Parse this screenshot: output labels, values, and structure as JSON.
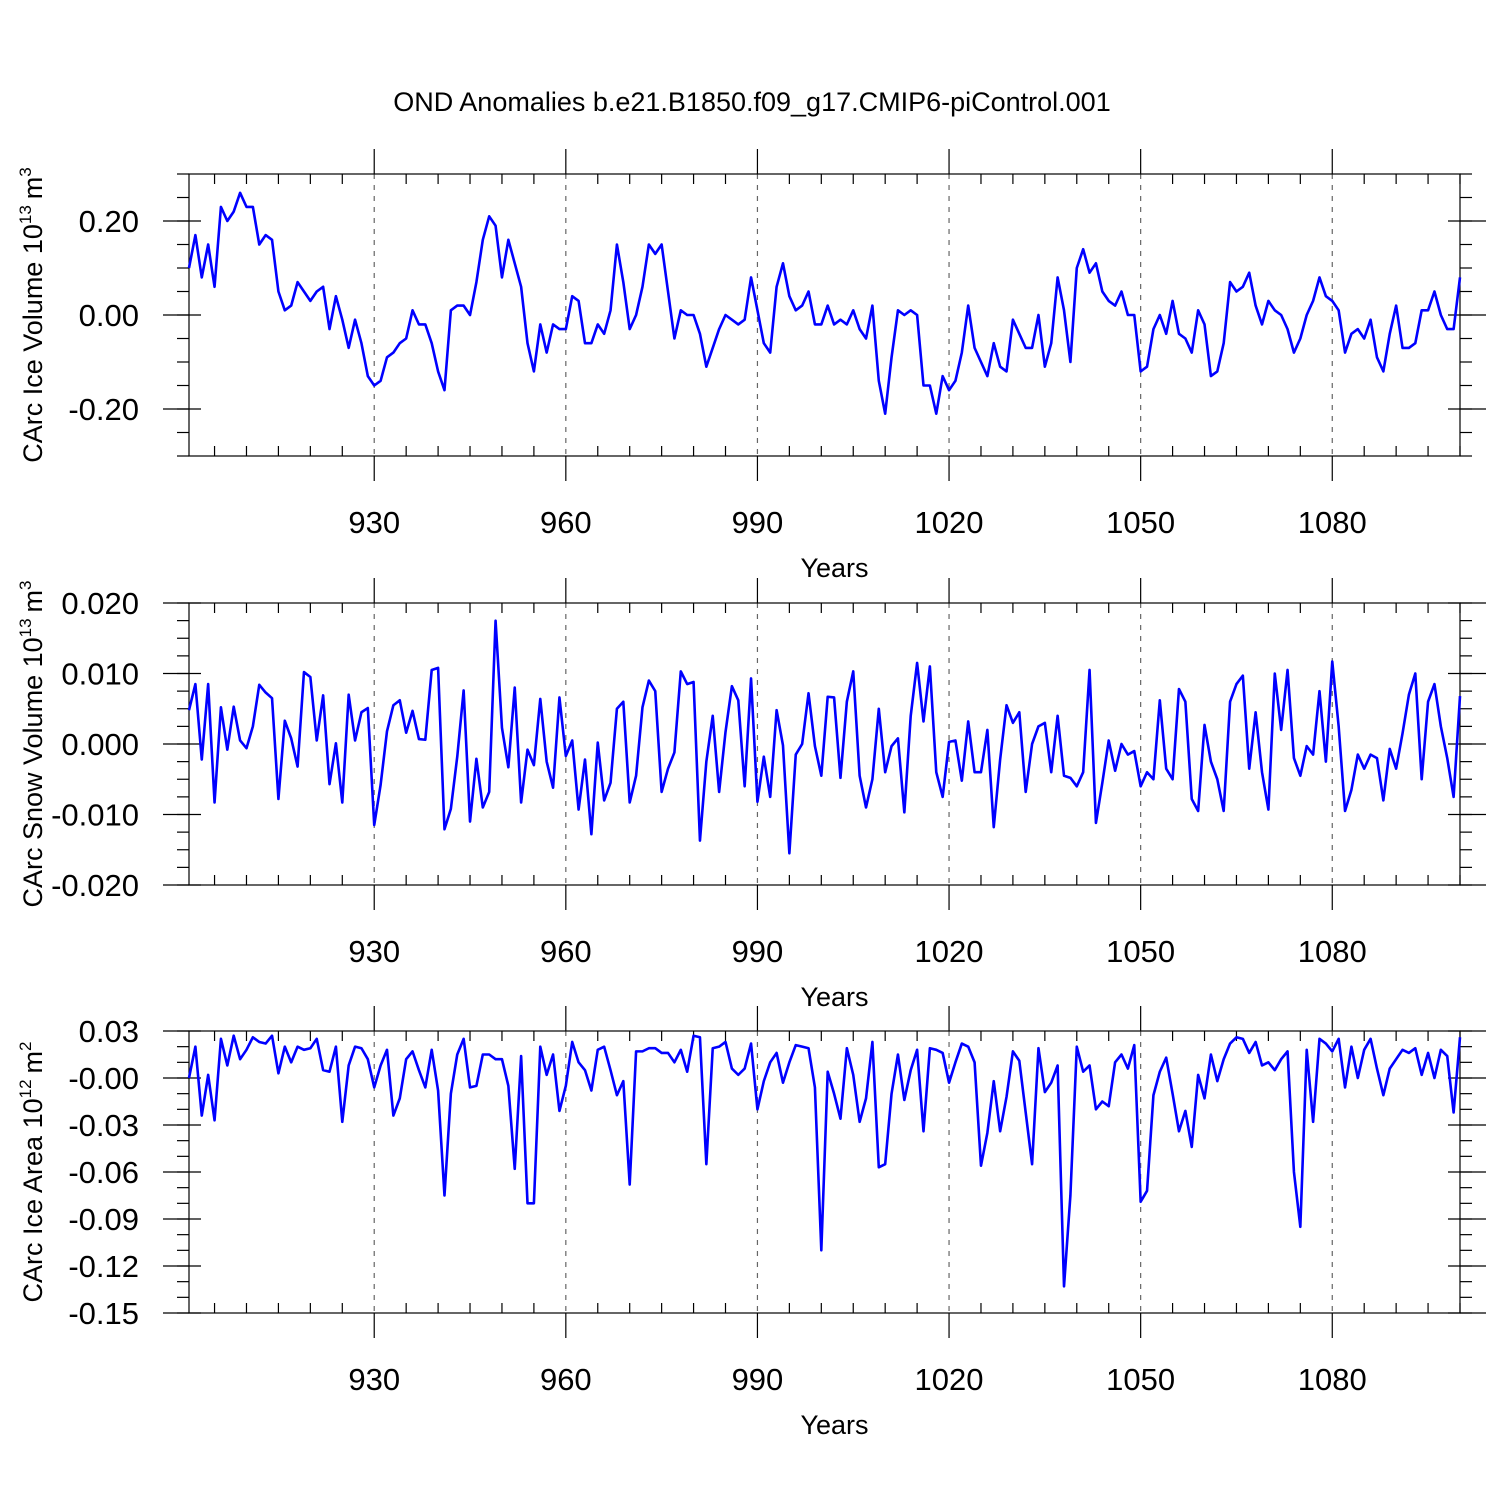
{
  "figure": {
    "title": "OND Anomalies b.e21.B1850.f09_g17.CMIP6-piControl.001"
  },
  "chart_data": [
    {
      "type": "line",
      "ylabel": "CArc Ice Volume 10",
      "ylabel_exp": "13",
      "ylabel_unit": "m",
      "ylabel_unit_exp": "3",
      "xlabel": "Years",
      "xlim": [
        901,
        1100
      ],
      "ylim": [
        -0.3,
        0.3
      ],
      "xticks": [
        930,
        960,
        990,
        1020,
        1050,
        1080
      ],
      "xtick_labels": [
        "930",
        "960",
        "990",
        "1020",
        "1050",
        "1080"
      ],
      "yticks": [
        0.2,
        0.0,
        -0.2
      ],
      "ytick_labels": [
        "0.20",
        "0.00",
        "-0.20"
      ],
      "y_minor": 0.05,
      "grid": "vertical-dashed",
      "series": [
        {
          "name": "CArc Ice Volume",
          "color": "#0000ff",
          "x_start": 901,
          "values": [
            0.1,
            0.17,
            0.08,
            0.15,
            0.06,
            0.23,
            0.2,
            0.22,
            0.26,
            0.23,
            0.23,
            0.15,
            0.17,
            0.16,
            0.05,
            0.01,
            0.02,
            0.07,
            0.05,
            0.03,
            0.05,
            0.06,
            -0.03,
            0.04,
            -0.01,
            -0.07,
            -0.01,
            -0.06,
            -0.13,
            -0.15,
            -0.14,
            -0.09,
            -0.08,
            -0.06,
            -0.05,
            0.01,
            -0.02,
            -0.02,
            -0.06,
            -0.12,
            -0.16,
            0.01,
            0.02,
            0.02,
            0.0,
            0.07,
            0.16,
            0.21,
            0.19,
            0.08,
            0.16,
            0.11,
            0.06,
            -0.06,
            -0.12,
            -0.02,
            -0.08,
            -0.02,
            -0.03,
            -0.03,
            0.04,
            0.03,
            -0.06,
            -0.06,
            -0.02,
            -0.04,
            0.01,
            0.15,
            0.07,
            -0.03,
            0.0,
            0.06,
            0.15,
            0.13,
            0.15,
            0.05,
            -0.05,
            0.01,
            0.0,
            0.0,
            -0.04,
            -0.11,
            -0.07,
            -0.03,
            0.0,
            -0.01,
            -0.02,
            -0.01,
            0.08,
            0.01,
            -0.06,
            -0.08,
            0.06,
            0.11,
            0.04,
            0.01,
            0.02,
            0.05,
            -0.02,
            -0.02,
            0.02,
            -0.02,
            -0.01,
            -0.02,
            0.01,
            -0.03,
            -0.05,
            0.02,
            -0.14,
            -0.21,
            -0.09,
            0.01,
            0.0,
            0.01,
            0.0,
            -0.15,
            -0.15,
            -0.21,
            -0.13,
            -0.16,
            -0.14,
            -0.08,
            0.02,
            -0.07,
            -0.1,
            -0.13,
            -0.06,
            -0.11,
            -0.12,
            -0.01,
            -0.04,
            -0.07,
            -0.07,
            0.0,
            -0.11,
            -0.06,
            0.08,
            0.01,
            -0.1,
            0.1,
            0.14,
            0.09,
            0.11,
            0.05,
            0.03,
            0.02,
            0.05,
            0.0,
            0.0,
            -0.12,
            -0.11,
            -0.03,
            0.0,
            -0.04,
            0.03,
            -0.04,
            -0.05,
            -0.08,
            0.01,
            -0.02,
            -0.13,
            -0.12,
            -0.06,
            0.07,
            0.05,
            0.06,
            0.09,
            0.02,
            -0.02,
            0.03,
            0.01,
            0.0,
            -0.03,
            -0.08,
            -0.05,
            0.0,
            0.03,
            0.08,
            0.04,
            0.03,
            0.01,
            -0.08,
            -0.04,
            -0.03,
            -0.05,
            -0.01,
            -0.09,
            -0.12,
            -0.04,
            0.02,
            -0.07,
            -0.07,
            -0.06,
            0.01,
            0.01,
            0.05,
            0.0,
            -0.03,
            -0.03,
            0.08
          ]
        }
      ]
    },
    {
      "type": "line",
      "ylabel": "CArc Snow Volume 10",
      "ylabel_exp": "13",
      "ylabel_unit": "m",
      "ylabel_unit_exp": "3",
      "xlabel": "Years",
      "xlim": [
        901,
        1100
      ],
      "ylim": [
        -0.02,
        0.02
      ],
      "xticks": [
        930,
        960,
        990,
        1020,
        1050,
        1080
      ],
      "xtick_labels": [
        "930",
        "960",
        "990",
        "1020",
        "1050",
        "1080"
      ],
      "yticks": [
        0.02,
        0.01,
        0.0,
        -0.01,
        -0.02
      ],
      "ytick_labels": [
        "0.020",
        "0.010",
        "0.000",
        "-0.010",
        "-0.020"
      ],
      "y_minor": 0.0025,
      "grid": "vertical-dashed",
      "series": [
        {
          "name": "CArc Snow Volume",
          "color": "#0000ff",
          "x_start": 901,
          "values": [
            0.0048,
            0.0085,
            -0.0022,
            0.0085,
            -0.0083,
            0.0052,
            -0.0008,
            0.0053,
            0.0005,
            -0.0006,
            0.0025,
            0.0084,
            0.0073,
            0.0065,
            -0.0078,
            0.0033,
            0.0008,
            -0.0032,
            0.0102,
            0.0095,
            0.0005,
            0.0069,
            -0.0057,
            0.0001,
            -0.0083,
            0.007,
            0.0005,
            0.0045,
            0.0051,
            -0.0115,
            -0.0058,
            0.0018,
            0.0055,
            0.0062,
            0.0016,
            0.0047,
            0.0007,
            0.0006,
            0.0105,
            0.0108,
            -0.0121,
            -0.0092,
            -0.0018,
            0.0076,
            -0.011,
            -0.0021,
            -0.009,
            -0.0068,
            0.0175,
            0.0023,
            -0.0033,
            0.008,
            -0.0083,
            -0.0008,
            -0.003,
            0.0064,
            -0.0025,
            -0.0062,
            0.0066,
            -0.0017,
            0.0005,
            -0.0093,
            -0.0022,
            -0.0128,
            0.0002,
            -0.008,
            -0.0055,
            0.005,
            0.006,
            -0.0083,
            -0.0045,
            0.0052,
            0.009,
            0.0075,
            -0.0068,
            -0.0035,
            -0.0012,
            0.0103,
            0.0085,
            0.0088,
            -0.0137,
            -0.0025,
            0.004,
            -0.0068,
            0.0017,
            0.0082,
            0.0062,
            -0.006,
            0.0093,
            -0.0082,
            -0.0018,
            -0.0075,
            0.0048,
            -0.0002,
            -0.0155,
            -0.0015,
            0.0,
            0.0072,
            -0.0003,
            -0.0045,
            0.0067,
            0.0066,
            -0.0048,
            0.006,
            0.0103,
            -0.0045,
            -0.009,
            -0.005,
            0.005,
            -0.004,
            -0.0003,
            0.0008,
            -0.0097,
            0.004,
            0.0115,
            0.0032,
            0.011,
            -0.004,
            -0.0075,
            0.0003,
            0.0005,
            -0.0052,
            0.0032,
            -0.004,
            -0.004,
            0.002,
            -0.0118,
            -0.0022,
            0.0055,
            0.003,
            0.0045,
            -0.0068,
            0.0,
            0.0025,
            0.003,
            -0.004,
            0.004,
            -0.0045,
            -0.0048,
            -0.006,
            -0.004,
            0.0105,
            -0.0112,
            -0.0055,
            0.0005,
            -0.0038,
            0.0,
            -0.0015,
            -0.001,
            -0.006,
            -0.004,
            -0.005,
            0.0062,
            -0.0035,
            -0.005,
            0.0078,
            0.006,
            -0.0078,
            -0.0095,
            0.0027,
            -0.0025,
            -0.005,
            -0.0095,
            0.006,
            0.0085,
            0.0097,
            -0.0035,
            0.0045,
            -0.004,
            -0.0093,
            0.01,
            0.002,
            0.0105,
            -0.002,
            -0.0045,
            -0.0003,
            -0.0015,
            0.0075,
            -0.0025,
            0.0117,
            0.0025,
            -0.0095,
            -0.0065,
            -0.0015,
            -0.0035,
            -0.0015,
            -0.002,
            -0.008,
            -0.0007,
            -0.0035,
            0.0015,
            0.007,
            0.01,
            -0.005,
            0.006,
            0.0085,
            0.0025,
            -0.002,
            -0.0075,
            0.0068
          ]
        }
      ]
    },
    {
      "type": "line",
      "ylabel": "CArc Ice Area 10",
      "ylabel_exp": "12",
      "ylabel_unit": "m",
      "ylabel_unit_exp": "2",
      "xlabel": "Years",
      "xlim": [
        901,
        1100
      ],
      "ylim": [
        -0.15,
        0.03
      ],
      "xticks": [
        930,
        960,
        990,
        1020,
        1050,
        1080
      ],
      "xtick_labels": [
        "930",
        "960",
        "990",
        "1020",
        "1050",
        "1080"
      ],
      "yticks": [
        0.03,
        0.0,
        -0.03,
        -0.06,
        -0.09,
        -0.12,
        -0.15
      ],
      "ytick_labels": [
        "0.03",
        "-0.00",
        "-0.03",
        "-0.06",
        "-0.09",
        "-0.12",
        "-0.15"
      ],
      "y_minor": 0.01,
      "grid": "vertical-dashed",
      "series": [
        {
          "name": "CArc Ice Area",
          "color": "#0000ff",
          "x_start": 901,
          "values": [
            0.0,
            0.02,
            -0.024,
            0.002,
            -0.027,
            0.025,
            0.008,
            0.027,
            0.012,
            0.018,
            0.026,
            0.023,
            0.022,
            0.027,
            0.003,
            0.02,
            0.01,
            0.02,
            0.018,
            0.019,
            0.025,
            0.005,
            0.004,
            0.02,
            -0.028,
            0.008,
            0.02,
            0.019,
            0.012,
            -0.006,
            0.008,
            0.018,
            -0.024,
            -0.013,
            0.012,
            0.017,
            0.005,
            -0.006,
            0.018,
            -0.008,
            -0.075,
            -0.01,
            0.015,
            0.025,
            -0.006,
            -0.005,
            0.015,
            0.015,
            0.012,
            0.012,
            -0.005,
            -0.058,
            0.014,
            -0.08,
            -0.08,
            0.02,
            0.002,
            0.015,
            -0.021,
            -0.005,
            0.023,
            0.01,
            0.005,
            -0.008,
            0.018,
            0.02,
            0.005,
            -0.011,
            -0.002,
            -0.068,
            0.017,
            0.017,
            0.019,
            0.019,
            0.016,
            0.016,
            0.01,
            0.018,
            0.004,
            0.027,
            0.026,
            -0.055,
            0.019,
            0.02,
            0.023,
            0.006,
            0.002,
            0.006,
            0.022,
            -0.02,
            -0.002,
            0.01,
            0.016,
            -0.003,
            0.01,
            0.021,
            0.02,
            0.019,
            -0.006,
            -0.11,
            0.004,
            -0.01,
            -0.026,
            0.019,
            0.002,
            -0.028,
            -0.013,
            0.023,
            -0.057,
            -0.055,
            -0.01,
            0.015,
            -0.014,
            0.005,
            0.018,
            -0.034,
            0.019,
            0.018,
            0.016,
            -0.003,
            0.01,
            0.022,
            0.02,
            0.01,
            -0.056,
            -0.035,
            -0.002,
            -0.034,
            -0.012,
            0.017,
            0.011,
            -0.022,
            -0.055,
            0.019,
            -0.009,
            -0.003,
            0.008,
            -0.133,
            -0.075,
            0.02,
            0.004,
            0.008,
            -0.02,
            -0.015,
            -0.018,
            0.01,
            0.015,
            0.006,
            0.021,
            -0.079,
            -0.072,
            -0.011,
            0.004,
            0.013,
            -0.01,
            -0.034,
            -0.021,
            -0.044,
            0.002,
            -0.013,
            0.015,
            -0.002,
            0.012,
            0.022,
            0.026,
            0.025,
            0.016,
            0.023,
            0.008,
            0.01,
            0.005,
            0.012,
            0.017,
            -0.06,
            -0.095,
            0.018,
            -0.028,
            0.025,
            0.022,
            0.017,
            0.025,
            -0.006,
            0.02,
            0.0,
            0.018,
            0.025,
            0.006,
            -0.011,
            0.006,
            0.012,
            0.018,
            0.016,
            0.019,
            0.002,
            0.016,
            0.0,
            0.018,
            0.014,
            -0.022,
            0.026
          ]
        }
      ]
    }
  ]
}
